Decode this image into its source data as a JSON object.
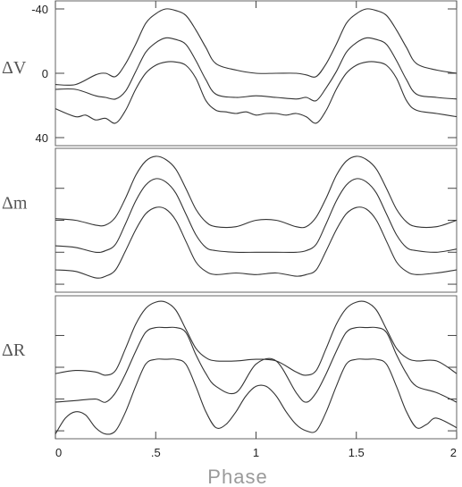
{
  "chart_data": {
    "type": "line",
    "xlabel": "Phase",
    "xlim": [
      0,
      2
    ],
    "x_ticks": [
      0,
      0.5,
      1,
      1.5,
      2
    ],
    "x_tick_labels": [
      "0",
      ".5",
      "1",
      "1.5",
      "2"
    ],
    "panels": [
      {
        "ylabel": "ΔV",
        "ylim": [
          -45,
          45
        ],
        "y_inverted": true,
        "y_ticks": [
          -40,
          0,
          40
        ],
        "y_tick_labels": [
          "-40",
          "0",
          "40"
        ],
        "series": [
          {
            "x": [
              0,
              0.1,
              0.2,
              0.25,
              0.3,
              0.35,
              0.4,
              0.45,
              0.5,
              0.55,
              0.6,
              0.65,
              0.7,
              0.75,
              0.8,
              0.9,
              1.0,
              1.1,
              1.2,
              1.25,
              1.3,
              1.35,
              1.4,
              1.45,
              1.5,
              1.55,
              1.6,
              1.65,
              1.7,
              1.75,
              1.8,
              1.9,
              2.0
            ],
            "y": [
              7,
              7,
              1,
              0,
              2,
              -6,
              -18,
              -31,
              -37,
              -40,
              -39,
              -36,
              -27,
              -16,
              -6,
              -2,
              0,
              0,
              0,
              1,
              2,
              -6,
              -18,
              -31,
              -37,
              -40,
              -39,
              -36,
              -27,
              -16,
              -6,
              -2,
              0
            ]
          },
          {
            "x": [
              0,
              0.1,
              0.2,
              0.25,
              0.3,
              0.35,
              0.4,
              0.45,
              0.5,
              0.55,
              0.6,
              0.65,
              0.7,
              0.75,
              0.8,
              0.9,
              1.0,
              1.1,
              1.2,
              1.25,
              1.3,
              1.35,
              1.4,
              1.45,
              1.5,
              1.55,
              1.6,
              1.65,
              1.7,
              1.75,
              1.8,
              1.9,
              2.0
            ],
            "y": [
              10,
              10,
              14,
              15,
              16,
              11,
              -1,
              -13,
              -19,
              -22,
              -21,
              -18,
              -8,
              4,
              13,
              15,
              14,
              15,
              16,
              15,
              17,
              9,
              -1,
              -13,
              -19,
              -22,
              -21,
              -18,
              -8,
              4,
              13,
              15,
              16
            ]
          },
          {
            "x": [
              0,
              0.1,
              0.15,
              0.2,
              0.25,
              0.3,
              0.35,
              0.4,
              0.45,
              0.5,
              0.55,
              0.6,
              0.65,
              0.7,
              0.75,
              0.8,
              0.85,
              0.9,
              0.95,
              1.0,
              1.05,
              1.1,
              1.15,
              1.2,
              1.25,
              1.3,
              1.35,
              1.4,
              1.45,
              1.5,
              1.55,
              1.6,
              1.65,
              1.7,
              1.75,
              1.8,
              1.9,
              2.0
            ],
            "y": [
              22,
              27,
              26,
              29,
              28,
              31,
              23,
              10,
              0,
              -5,
              -7,
              -7,
              -5,
              3,
              17,
              23,
              24,
              25,
              24,
              26,
              25,
              25,
              26,
              25,
              27,
              31,
              23,
              10,
              0,
              -5,
              -7,
              -7,
              -5,
              3,
              17,
              23,
              25,
              27
            ]
          }
        ]
      },
      {
        "ylabel": "Δm",
        "ylim": [
          -45,
          45
        ],
        "y_inverted": true,
        "y_ticks": [
          -20,
          0,
          20,
          40
        ],
        "y_tick_labels": [
          "",
          "",
          "",
          ""
        ],
        "series": [
          {
            "x": [
              0,
              0.1,
              0.2,
              0.25,
              0.3,
              0.35,
              0.4,
              0.45,
              0.5,
              0.55,
              0.6,
              0.65,
              0.7,
              0.75,
              0.8,
              0.9,
              1.0,
              1.1,
              1.2,
              1.25,
              1.3,
              1.35,
              1.4,
              1.45,
              1.5,
              1.55,
              1.6,
              1.65,
              1.7,
              1.75,
              1.8,
              1.9,
              2.0
            ],
            "y": [
              -1,
              0,
              3,
              3,
              -2,
              -14,
              -28,
              -37,
              -40,
              -38,
              -32,
              -20,
              -7,
              1,
              4,
              4,
              0,
              0,
              4,
              4,
              -2,
              -14,
              -28,
              -37,
              -40,
              -38,
              -32,
              -20,
              -7,
              1,
              4,
              4,
              0
            ]
          },
          {
            "x": [
              0,
              0.1,
              0.2,
              0.25,
              0.3,
              0.35,
              0.4,
              0.45,
              0.5,
              0.55,
              0.6,
              0.65,
              0.7,
              0.75,
              0.8,
              0.9,
              1.0,
              1.1,
              1.2,
              1.25,
              1.3,
              1.35,
              1.4,
              1.45,
              1.5,
              1.55,
              1.6,
              1.65,
              1.7,
              1.75,
              1.8,
              1.9,
              2.0
            ],
            "y": [
              16,
              17,
              20,
              19,
              15,
              2,
              -12,
              -22,
              -26,
              -24,
              -17,
              -4,
              9,
              17,
              19,
              20,
              20,
              20,
              20,
              19,
              15,
              2,
              -12,
              -22,
              -26,
              -24,
              -17,
              -4,
              9,
              17,
              19,
              20,
              18
            ]
          },
          {
            "x": [
              0,
              0.1,
              0.2,
              0.25,
              0.3,
              0.35,
              0.4,
              0.45,
              0.5,
              0.55,
              0.6,
              0.65,
              0.7,
              0.75,
              0.8,
              0.9,
              1.0,
              1.1,
              1.2,
              1.25,
              1.3,
              1.35,
              1.4,
              1.45,
              1.5,
              1.55,
              1.6,
              1.65,
              1.7,
              1.75,
              1.8,
              1.9,
              2.0
            ],
            "y": [
              31,
              32,
              36,
              35,
              31,
              19,
              6,
              -4,
              -8,
              -7,
              0,
              13,
              26,
              32,
              34,
              33,
              34,
              33,
              35,
              34,
              31,
              19,
              6,
              -4,
              -8,
              -7,
              0,
              13,
              26,
              32,
              34,
              33,
              31
            ]
          }
        ]
      },
      {
        "ylabel": "ΔR",
        "ylim": [
          -45,
          45
        ],
        "y_inverted": true,
        "y_ticks": [
          -20,
          0,
          20,
          40
        ],
        "y_tick_labels": [
          "",
          "",
          "",
          ""
        ],
        "series": [
          {
            "x": [
              0,
              0.1,
              0.2,
              0.25,
              0.3,
              0.35,
              0.4,
              0.45,
              0.5,
              0.55,
              0.6,
              0.65,
              0.7,
              0.75,
              0.8,
              0.9,
              1.0,
              1.1,
              1.2,
              1.25,
              1.3,
              1.35,
              1.4,
              1.45,
              1.5,
              1.55,
              1.6,
              1.65,
              1.7,
              1.75,
              1.8,
              1.9,
              2.0
            ],
            "y": [
              4,
              2,
              3,
              5,
              2,
              -12,
              -27,
              -37,
              -41,
              -41,
              -36,
              -24,
              -12,
              -6,
              -4,
              -4,
              -5,
              -4,
              3,
              5,
              2,
              -12,
              -27,
              -37,
              -41,
              -41,
              -36,
              -24,
              -12,
              -6,
              -4,
              -4,
              4
            ]
          },
          {
            "x": [
              0,
              0.1,
              0.2,
              0.25,
              0.3,
              0.35,
              0.4,
              0.45,
              0.5,
              0.55,
              0.6,
              0.65,
              0.7,
              0.75,
              0.8,
              0.9,
              1.0,
              1.1,
              1.2,
              1.25,
              1.3,
              1.35,
              1.4,
              1.45,
              1.5,
              1.55,
              1.6,
              1.65,
              1.7,
              1.75,
              1.8,
              1.9,
              2.0
            ],
            "y": [
              22,
              21,
              20,
              22,
              16,
              4,
              -10,
              -22,
              -25,
              -25,
              -25,
              -22,
              -8,
              4,
              12,
              16,
              -2,
              -4,
              16,
              22,
              16,
              4,
              -10,
              -22,
              -25,
              -25,
              -25,
              -22,
              -8,
              4,
              12,
              16,
              22
            ]
          },
          {
            "x": [
              0,
              0.05,
              0.1,
              0.15,
              0.2,
              0.25,
              0.3,
              0.35,
              0.4,
              0.45,
              0.5,
              0.55,
              0.6,
              0.65,
              0.7,
              0.75,
              0.8,
              0.85,
              0.9,
              0.95,
              1.0,
              1.05,
              1.1,
              1.15,
              1.2,
              1.25,
              1.3,
              1.35,
              1.4,
              1.45,
              1.5,
              1.55,
              1.6,
              1.65,
              1.7,
              1.75,
              1.8,
              1.85,
              1.9,
              2.0
            ],
            "y": [
              42,
              32,
              28,
              30,
              38,
              42,
              40,
              28,
              12,
              -2,
              -5,
              -5,
              -5,
              -2,
              12,
              28,
              38,
              36,
              28,
              18,
              12,
              12,
              18,
              28,
              36,
              40,
              40,
              28,
              12,
              -2,
              -5,
              -5,
              -5,
              -2,
              12,
              28,
              38,
              36,
              32,
              38
            ]
          }
        ]
      }
    ]
  }
}
